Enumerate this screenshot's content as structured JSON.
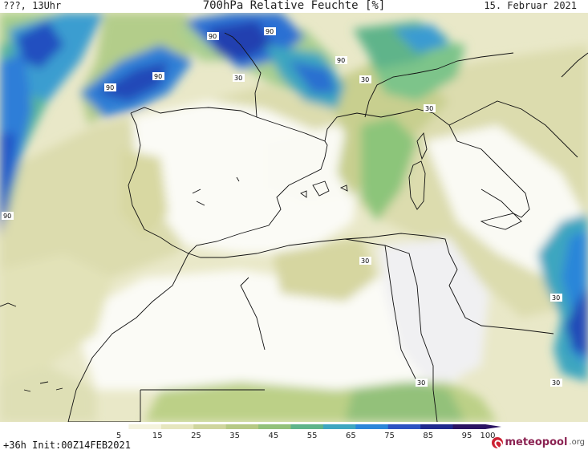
{
  "header": {
    "left": "???, 13Uhr",
    "title": "700hPa Relative Feuchte [%]",
    "date": "15. Februar 2021"
  },
  "footer": {
    "init": "+36h Init:00Z14FEB2021",
    "logo_text": "meteopool",
    "logo_suffix": ".org"
  },
  "colorbar": {
    "ticks": [
      "5",
      "15",
      "25",
      "35",
      "45",
      "55",
      "65",
      "75",
      "85",
      "95",
      "100"
    ],
    "colors": [
      "#ffffff",
      "#f4f3dd",
      "#e6e6bf",
      "#cfd59e",
      "#b6c985",
      "#93c17a",
      "#5fb48a",
      "#3ea6c0",
      "#2b86d9",
      "#2c53c2",
      "#1f2a8e",
      "#2a1462"
    ]
  },
  "contour_labels": [
    "90",
    "90",
    "90",
    "90",
    "90",
    "90",
    "30",
    "30",
    "30",
    "30",
    "30",
    "30",
    "30",
    "30",
    "90"
  ]
}
